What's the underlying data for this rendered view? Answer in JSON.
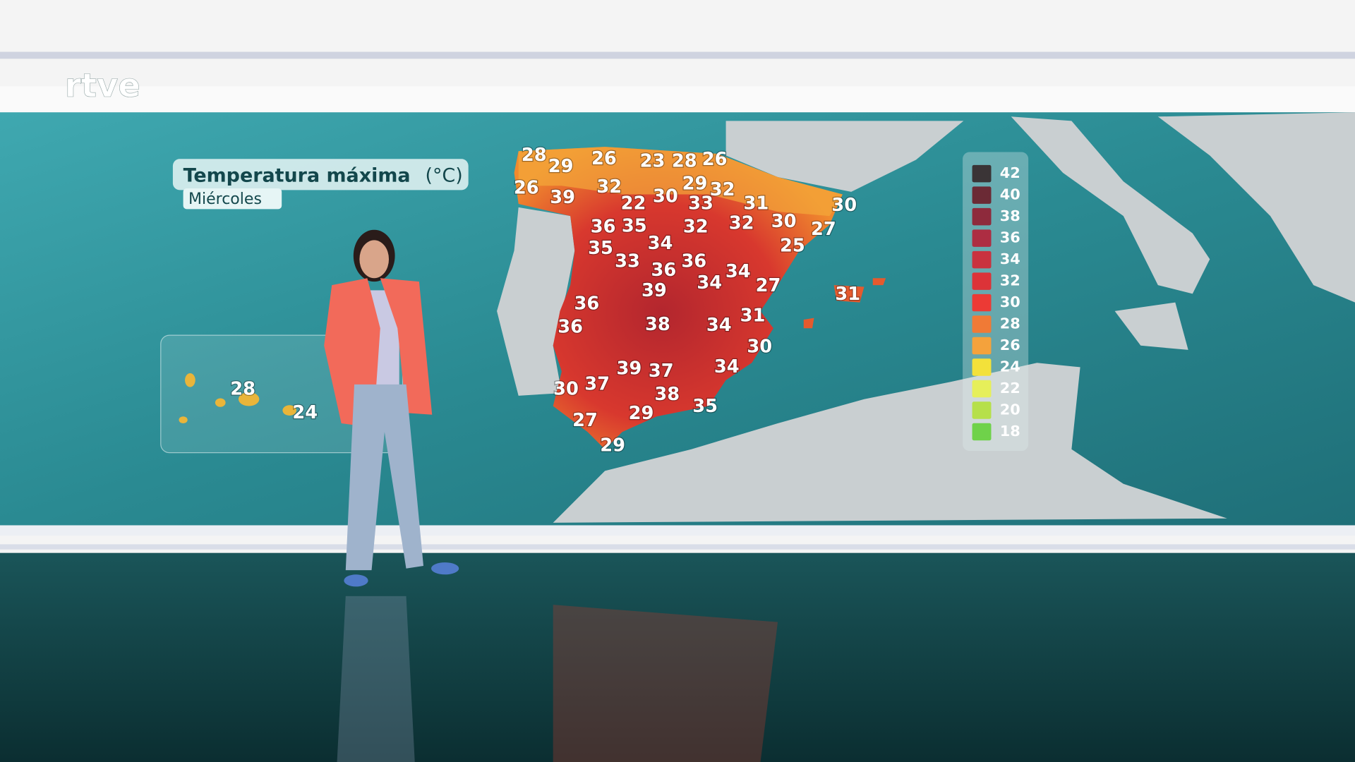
{
  "logo": "rtve",
  "title": "Temperatura máxima",
  "unit": "(°C)",
  "day": "Miércoles",
  "peninsula_temperatures": [
    28,
    29,
    26,
    23,
    28,
    26,
    26,
    39,
    32,
    29,
    32,
    22,
    30,
    33,
    31,
    30,
    36,
    35,
    32,
    32,
    30,
    27,
    35,
    33,
    34,
    25,
    36,
    36,
    34,
    34,
    27,
    39,
    36,
    31,
    36,
    38,
    34,
    31,
    30,
    39,
    37,
    34,
    30,
    37,
    38,
    27,
    29,
    35,
    29
  ],
  "canary_temperatures": [
    28,
    24
  ],
  "legend": [
    {
      "value": 42,
      "color": "#3a3436"
    },
    {
      "value": 40,
      "color": "#6b2a35"
    },
    {
      "value": 38,
      "color": "#8e2a3c"
    },
    {
      "value": 36,
      "color": "#ad2d42"
    },
    {
      "value": 34,
      "color": "#c9323f"
    },
    {
      "value": 32,
      "color": "#dc3338"
    },
    {
      "value": 30,
      "color": "#ec3a35"
    },
    {
      "value": 28,
      "color": "#f07a36"
    },
    {
      "value": 26,
      "color": "#f4a23c"
    },
    {
      "value": 24,
      "color": "#f3e13a"
    },
    {
      "value": 22,
      "color": "#e6ef5a"
    },
    {
      "value": 20,
      "color": "#b6e04a"
    },
    {
      "value": 18,
      "color": "#6fd24a"
    }
  ]
}
